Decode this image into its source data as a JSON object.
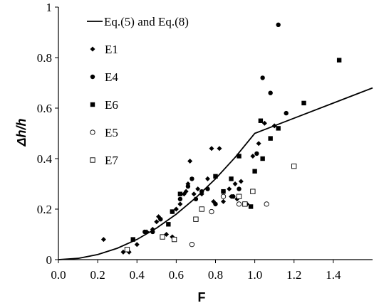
{
  "chart_data": {
    "type": "scatter",
    "xlabel": "F",
    "ylabel": "Δh/h",
    "xlim": [
      0,
      1.6
    ],
    "ylim": [
      0,
      1
    ],
    "x_ticks": [
      "0.0",
      "0.2",
      "0.4",
      "0.6",
      "0.8",
      "1.0",
      "1.2",
      "1.4"
    ],
    "y_ticks": [
      "0",
      "0.2",
      "0.4",
      "0.6",
      "0.8",
      "1"
    ],
    "grid": false,
    "legend_position": "top-left",
    "series": [
      {
        "name": "Eq.(5) and Eq.(8)",
        "type": "line",
        "marker": "none",
        "x": [
          0,
          0.1,
          0.2,
          0.3,
          0.4,
          0.5,
          0.6,
          0.7,
          0.8,
          0.9,
          1.0,
          1.2,
          1.4,
          1.6
        ],
        "y": [
          0,
          0.005,
          0.02,
          0.045,
          0.08,
          0.125,
          0.18,
          0.245,
          0.32,
          0.405,
          0.5,
          0.56,
          0.62,
          0.68
        ]
      },
      {
        "name": "E1",
        "marker": "diamond",
        "x": [
          0.23,
          0.33,
          0.36,
          0.4,
          0.45,
          0.48,
          0.5,
          0.51,
          0.55,
          0.58,
          0.6,
          0.62,
          0.64,
          0.65,
          0.66,
          0.67,
          0.69,
          0.71,
          0.73,
          0.76,
          0.78,
          0.79,
          0.82,
          0.84,
          0.87,
          0.88,
          0.9,
          0.91,
          0.93,
          0.96,
          0.99,
          1.02,
          1.05,
          1.1
        ],
        "y": [
          0.08,
          0.03,
          0.03,
          0.06,
          0.11,
          0.12,
          0.15,
          0.17,
          0.1,
          0.09,
          0.2,
          0.22,
          0.26,
          0.27,
          0.3,
          0.39,
          0.26,
          0.28,
          0.26,
          0.32,
          0.44,
          0.23,
          0.44,
          0.23,
          0.28,
          0.25,
          0.3,
          0.24,
          0.31,
          0.22,
          0.41,
          0.46,
          0.54,
          0.53
        ]
      },
      {
        "name": "E4",
        "marker": "circle",
        "x": [
          0.44,
          0.48,
          0.52,
          0.58,
          0.62,
          0.66,
          0.68,
          0.7,
          0.73,
          0.76,
          0.8,
          0.84,
          0.89,
          0.92,
          1.01,
          1.04,
          1.08,
          1.12,
          1.16
        ],
        "y": [
          0.11,
          0.11,
          0.16,
          0.19,
          0.24,
          0.29,
          0.32,
          0.24,
          0.27,
          0.28,
          0.22,
          0.27,
          0.25,
          0.28,
          0.42,
          0.72,
          0.66,
          0.93,
          0.58
        ]
      },
      {
        "name": "E6",
        "marker": "square",
        "x": [
          0.38,
          0.56,
          0.58,
          0.62,
          0.8,
          0.84,
          0.88,
          0.92,
          0.98,
          1.0,
          1.03,
          1.04,
          1.08,
          1.12,
          1.25,
          1.43
        ],
        "y": [
          0.08,
          0.14,
          0.19,
          0.26,
          0.33,
          0.27,
          0.32,
          0.41,
          0.21,
          0.35,
          0.55,
          0.4,
          0.48,
          0.52,
          0.62,
          0.79
        ]
      },
      {
        "name": "E5",
        "marker": "open-circle",
        "x": [
          0.68,
          0.78,
          0.84,
          0.92,
          1.06
        ],
        "y": [
          0.06,
          0.19,
          0.25,
          0.22,
          0.22
        ]
      },
      {
        "name": "E7",
        "marker": "open-square",
        "x": [
          0.35,
          0.53,
          0.59,
          0.7,
          0.73,
          0.92,
          0.95,
          0.99,
          1.2
        ],
        "y": [
          0.04,
          0.09,
          0.08,
          0.16,
          0.2,
          0.25,
          0.22,
          0.27,
          0.37
        ]
      }
    ]
  }
}
